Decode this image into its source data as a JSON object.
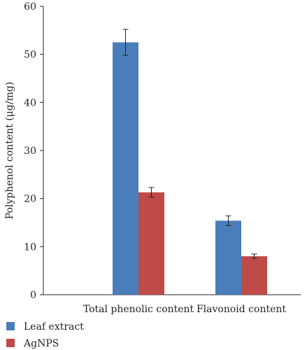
{
  "chart_data": {
    "type": "bar",
    "categories": [
      "Total phenolic content",
      "Flavonoid content"
    ],
    "series": [
      {
        "name": "Leaf extract",
        "values": [
          52.5,
          15.4
        ],
        "errors": [
          2.7,
          1.0
        ],
        "color": "#4a7ebb"
      },
      {
        "name": "AgNPS",
        "values": [
          21.3,
          8.0
        ],
        "errors": [
          1.0,
          0.45
        ],
        "color": "#be4b48"
      }
    ],
    "ylabel": "Polyphenol content (μg/mg)",
    "ylim": [
      0,
      60
    ],
    "yticks": [
      0,
      10,
      20,
      30,
      40,
      50,
      60
    ],
    "grid": false,
    "legend_position": "bottom-left"
  }
}
